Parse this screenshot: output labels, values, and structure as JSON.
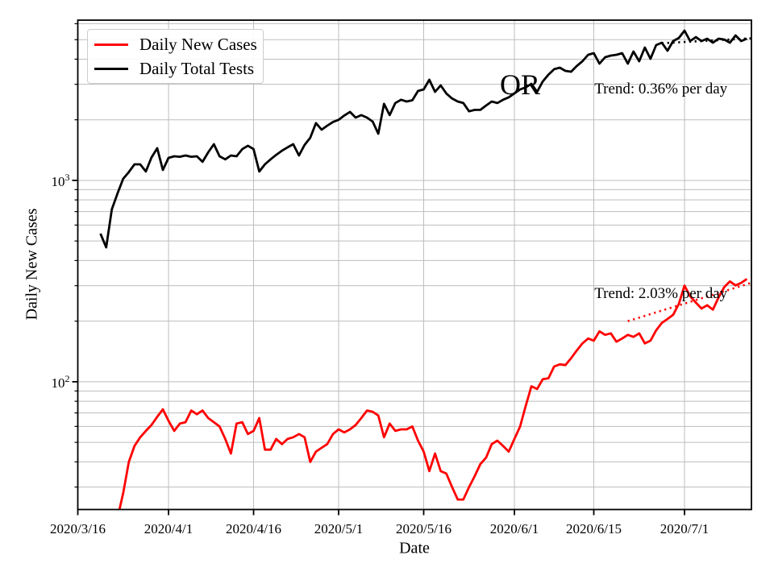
{
  "figure": {
    "ylabel": "Daily New Cases",
    "xlabel": "Date",
    "background": "#ffffff",
    "grid_color": "#bdbdbd",
    "spine_color": "#000000"
  },
  "legend": {
    "items": [
      {
        "label": "Daily New Cases",
        "color": "#ff0000"
      },
      {
        "label": "Daily Total Tests",
        "color": "#000000"
      }
    ]
  },
  "annotations": {
    "state_label": {
      "text": "OR",
      "day": 78,
      "value": 3000
    },
    "trend_black": {
      "text": "Trend: 0.36% per day",
      "day": 91.1,
      "value": 2830
    },
    "trend_red": {
      "text": "Trend: 2.03% per day",
      "day": 91.1,
      "value": 273
    }
  },
  "chart_data": {
    "type": "line",
    "yscale": "log",
    "title": "",
    "xlabel": "Date",
    "ylabel": "Daily New Cases",
    "start_date": "2020/3/16",
    "x_unit": "days since 2020/3/16",
    "xlim_days": [
      0,
      118.8
    ],
    "ylim": [
      23.2,
      6250
    ],
    "grid": true,
    "legend_position": "upper left",
    "x_ticks": [
      {
        "label": "2020/3/16",
        "day": 0
      },
      {
        "label": "2020/4/1",
        "day": 16
      },
      {
        "label": "2020/4/16",
        "day": 31
      },
      {
        "label": "2020/5/1",
        "day": 46
      },
      {
        "label": "2020/5/16",
        "day": 61
      },
      {
        "label": "2020/6/1",
        "day": 77
      },
      {
        "label": "2020/6/15",
        "day": 91
      },
      {
        "label": "2020/7/1",
        "day": 107
      }
    ],
    "y_ticks": [
      {
        "base": "10",
        "exp": "2",
        "value": 100
      },
      {
        "base": "10",
        "exp": "3",
        "value": 1000
      }
    ],
    "grid_y_values": [
      30,
      40,
      50,
      60,
      70,
      80,
      90,
      100,
      200,
      300,
      400,
      500,
      600,
      700,
      800,
      900,
      1000,
      2000,
      3000,
      4000,
      5000,
      6000
    ],
    "series": [
      {
        "name": "Daily New Cases",
        "color": "#ff0000",
        "style": "solid",
        "start_day": 7,
        "values": [
          21,
          28,
          40,
          48,
          53,
          57,
          61,
          67,
          73,
          64,
          57,
          62,
          63,
          72,
          69,
          72,
          66,
          63,
          60,
          52,
          44,
          62,
          63,
          55,
          57,
          66,
          46,
          46,
          52,
          49,
          52,
          53,
          55,
          53,
          40,
          45,
          47,
          49,
          55,
          58,
          56,
          58,
          61,
          66,
          72,
          71,
          68,
          53,
          62,
          57,
          58,
          58,
          60,
          51,
          45,
          36,
          44,
          36,
          35,
          30,
          26,
          26,
          30,
          34,
          39,
          42,
          49,
          51,
          48,
          45,
          52,
          60,
          76,
          95,
          92,
          103,
          104,
          119,
          122,
          121,
          131,
          143,
          155,
          164,
          160,
          178,
          171,
          174,
          158,
          164,
          171,
          167,
          174,
          155,
          160,
          180,
          196,
          205,
          215,
          244,
          300,
          266,
          247,
          231,
          240,
          228,
          262,
          295,
          315,
          301,
          310,
          324
        ]
      },
      {
        "name": "Daily Total Tests",
        "color": "#000000",
        "style": "solid",
        "start_day": 4,
        "values": [
          544,
          465,
          718,
          860,
          1019,
          1100,
          1202,
          1202,
          1107,
          1300,
          1445,
          1127,
          1294,
          1318,
          1310,
          1330,
          1310,
          1318,
          1236,
          1380,
          1513,
          1318,
          1272,
          1330,
          1318,
          1430,
          1486,
          1430,
          1107,
          1202,
          1272,
          1340,
          1404,
          1460,
          1513,
          1330,
          1500,
          1629,
          1925,
          1786,
          1870,
          1950,
          2000,
          2100,
          2188,
          2050,
          2109,
          2050,
          1959,
          1706,
          2399,
          2109,
          2422,
          2515,
          2466,
          2500,
          2780,
          2831,
          3162,
          2754,
          2965,
          2700,
          2550,
          2466,
          2422,
          2203,
          2239,
          2239,
          2355,
          2466,
          2422,
          2515,
          2587,
          2704,
          2831,
          2900,
          3020,
          2754,
          3100,
          3350,
          3565,
          3631,
          3499,
          3467,
          3700,
          3908,
          4207,
          4285,
          3802,
          4093,
          4169,
          4207,
          4285,
          3802,
          4365,
          3908,
          4571,
          4018,
          4699,
          4831,
          4406,
          4920,
          5100,
          5546,
          4920,
          5152,
          4920,
          5058,
          4831,
          5058,
          5012,
          4831,
          5248,
          4920,
          5058
        ]
      }
    ],
    "trend_lines": [
      {
        "name": "tests-trend",
        "color": "#000000",
        "style": "dotted",
        "rate_text": "0.36% per day",
        "days": [
          103,
          118.8
        ],
        "values": [
          4800,
          5080
        ]
      },
      {
        "name": "cases-trend",
        "color": "#ff0000",
        "style": "dotted",
        "rate_text": "2.03% per day",
        "days": [
          97,
          118.8
        ],
        "values": [
          200,
          310
        ]
      }
    ]
  }
}
